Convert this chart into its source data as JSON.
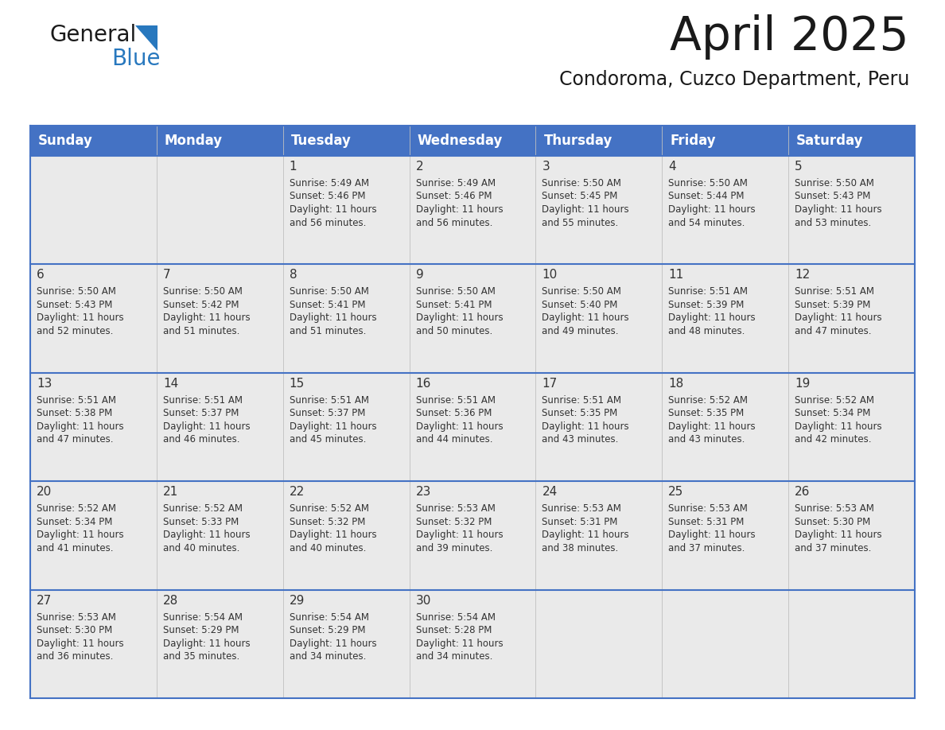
{
  "title": "April 2025",
  "subtitle": "Condoroma, Cuzco Department, Peru",
  "header_color": "#4472C4",
  "header_text_color": "#FFFFFF",
  "days_of_week": [
    "Sunday",
    "Monday",
    "Tuesday",
    "Wednesday",
    "Thursday",
    "Friday",
    "Saturday"
  ],
  "background_color": "#FFFFFF",
  "cell_bg_color": "#EAEAEA",
  "text_color": "#333333",
  "border_color": "#4472C4",
  "logo_general_color": "#1a1a1a",
  "logo_blue_color": "#2878BE",
  "title_fontsize": 42,
  "subtitle_fontsize": 17,
  "header_fontsize": 12,
  "day_number_fontsize": 11,
  "cell_text_fontsize": 8.5,
  "calendar_data": [
    [
      {
        "day": "",
        "sunrise": "",
        "sunset": "",
        "daylight": ""
      },
      {
        "day": "",
        "sunrise": "",
        "sunset": "",
        "daylight": ""
      },
      {
        "day": "1",
        "sunrise": "5:49 AM",
        "sunset": "5:46 PM",
        "daylight": "11 hours and 56 minutes."
      },
      {
        "day": "2",
        "sunrise": "5:49 AM",
        "sunset": "5:46 PM",
        "daylight": "11 hours and 56 minutes."
      },
      {
        "day": "3",
        "sunrise": "5:50 AM",
        "sunset": "5:45 PM",
        "daylight": "11 hours and 55 minutes."
      },
      {
        "day": "4",
        "sunrise": "5:50 AM",
        "sunset": "5:44 PM",
        "daylight": "11 hours and 54 minutes."
      },
      {
        "day": "5",
        "sunrise": "5:50 AM",
        "sunset": "5:43 PM",
        "daylight": "11 hours and 53 minutes."
      }
    ],
    [
      {
        "day": "6",
        "sunrise": "5:50 AM",
        "sunset": "5:43 PM",
        "daylight": "11 hours and 52 minutes."
      },
      {
        "day": "7",
        "sunrise": "5:50 AM",
        "sunset": "5:42 PM",
        "daylight": "11 hours and 51 minutes."
      },
      {
        "day": "8",
        "sunrise": "5:50 AM",
        "sunset": "5:41 PM",
        "daylight": "11 hours and 51 minutes."
      },
      {
        "day": "9",
        "sunrise": "5:50 AM",
        "sunset": "5:41 PM",
        "daylight": "11 hours and 50 minutes."
      },
      {
        "day": "10",
        "sunrise": "5:50 AM",
        "sunset": "5:40 PM",
        "daylight": "11 hours and 49 minutes."
      },
      {
        "day": "11",
        "sunrise": "5:51 AM",
        "sunset": "5:39 PM",
        "daylight": "11 hours and 48 minutes."
      },
      {
        "day": "12",
        "sunrise": "5:51 AM",
        "sunset": "5:39 PM",
        "daylight": "11 hours and 47 minutes."
      }
    ],
    [
      {
        "day": "13",
        "sunrise": "5:51 AM",
        "sunset": "5:38 PM",
        "daylight": "11 hours and 47 minutes."
      },
      {
        "day": "14",
        "sunrise": "5:51 AM",
        "sunset": "5:37 PM",
        "daylight": "11 hours and 46 minutes."
      },
      {
        "day": "15",
        "sunrise": "5:51 AM",
        "sunset": "5:37 PM",
        "daylight": "11 hours and 45 minutes."
      },
      {
        "day": "16",
        "sunrise": "5:51 AM",
        "sunset": "5:36 PM",
        "daylight": "11 hours and 44 minutes."
      },
      {
        "day": "17",
        "sunrise": "5:51 AM",
        "sunset": "5:35 PM",
        "daylight": "11 hours and 43 minutes."
      },
      {
        "day": "18",
        "sunrise": "5:52 AM",
        "sunset": "5:35 PM",
        "daylight": "11 hours and 43 minutes."
      },
      {
        "day": "19",
        "sunrise": "5:52 AM",
        "sunset": "5:34 PM",
        "daylight": "11 hours and 42 minutes."
      }
    ],
    [
      {
        "day": "20",
        "sunrise": "5:52 AM",
        "sunset": "5:34 PM",
        "daylight": "11 hours and 41 minutes."
      },
      {
        "day": "21",
        "sunrise": "5:52 AM",
        "sunset": "5:33 PM",
        "daylight": "11 hours and 40 minutes."
      },
      {
        "day": "22",
        "sunrise": "5:52 AM",
        "sunset": "5:32 PM",
        "daylight": "11 hours and 40 minutes."
      },
      {
        "day": "23",
        "sunrise": "5:53 AM",
        "sunset": "5:32 PM",
        "daylight": "11 hours and 39 minutes."
      },
      {
        "day": "24",
        "sunrise": "5:53 AM",
        "sunset": "5:31 PM",
        "daylight": "11 hours and 38 minutes."
      },
      {
        "day": "25",
        "sunrise": "5:53 AM",
        "sunset": "5:31 PM",
        "daylight": "11 hours and 37 minutes."
      },
      {
        "day": "26",
        "sunrise": "5:53 AM",
        "sunset": "5:30 PM",
        "daylight": "11 hours and 37 minutes."
      }
    ],
    [
      {
        "day": "27",
        "sunrise": "5:53 AM",
        "sunset": "5:30 PM",
        "daylight": "11 hours and 36 minutes."
      },
      {
        "day": "28",
        "sunrise": "5:54 AM",
        "sunset": "5:29 PM",
        "daylight": "11 hours and 35 minutes."
      },
      {
        "day": "29",
        "sunrise": "5:54 AM",
        "sunset": "5:29 PM",
        "daylight": "11 hours and 34 minutes."
      },
      {
        "day": "30",
        "sunrise": "5:54 AM",
        "sunset": "5:28 PM",
        "daylight": "11 hours and 34 minutes."
      },
      {
        "day": "",
        "sunrise": "",
        "sunset": "",
        "daylight": ""
      },
      {
        "day": "",
        "sunrise": "",
        "sunset": "",
        "daylight": ""
      },
      {
        "day": "",
        "sunrise": "",
        "sunset": "",
        "daylight": ""
      }
    ]
  ]
}
